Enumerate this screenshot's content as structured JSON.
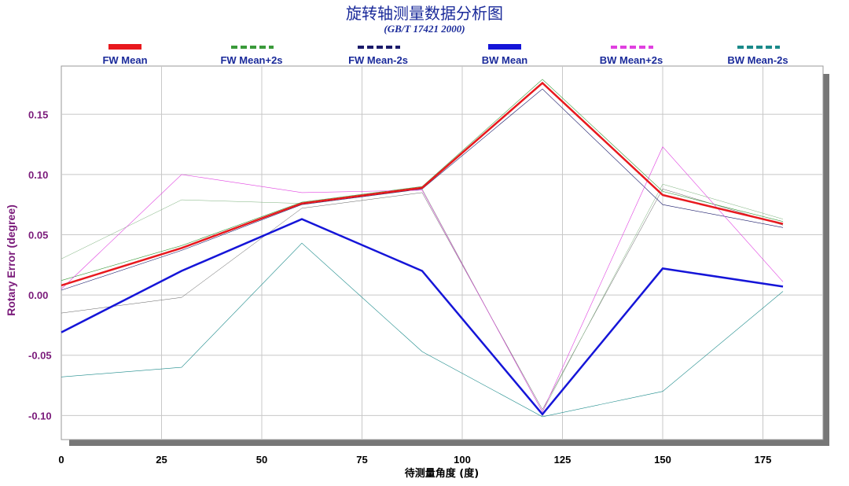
{
  "chart_data": {
    "type": "line",
    "title": "旋转轴测量数据分析图",
    "subtitle": "(GB/T 17421 2000)",
    "xlabel": "待测量角度 (度)",
    "ylabel": "Rotary Error (degree)",
    "xlim": [
      0,
      190
    ],
    "ylim": [
      -0.12,
      0.19
    ],
    "xticks": [
      0,
      25,
      50,
      75,
      100,
      125,
      150,
      175
    ],
    "yticks": [
      -0.1,
      -0.05,
      0.0,
      0.05,
      0.1,
      0.15
    ],
    "ytick_labels": [
      "-0.10",
      "-0.05",
      "0.00",
      "0.05",
      "0.10",
      "0.15"
    ],
    "grid": true,
    "legend_position": "top",
    "x": [
      0,
      30,
      60,
      90,
      120,
      150,
      180
    ],
    "series": [
      {
        "name": "FW Mean",
        "color": "#e8191e",
        "style": "solid",
        "width": 2.5,
        "legend_style": "thick",
        "values": [
          0.008,
          0.039,
          0.076,
          0.089,
          0.176,
          0.083,
          0.059
        ]
      },
      {
        "name": "FW Mean+2s",
        "color": "#3a9a3a",
        "style": "solid",
        "width": 0.6,
        "legend_style": "dashed",
        "values": [
          0.012,
          0.041,
          0.077,
          0.09,
          0.179,
          0.086,
          0.061
        ]
      },
      {
        "name": "FW Mean-2s",
        "color": "#1a1a6a",
        "style": "solid",
        "width": 0.6,
        "legend_style": "dashed",
        "values": [
          0.004,
          0.037,
          0.075,
          0.088,
          0.171,
          0.075,
          0.056
        ]
      },
      {
        "name": "BW Mean",
        "color": "#1515d8",
        "style": "solid",
        "width": 2.5,
        "legend_style": "thick",
        "values": [
          -0.031,
          0.02,
          0.063,
          0.02,
          -0.099,
          0.022,
          0.007
        ]
      },
      {
        "name": "BW Mean+2s",
        "color": "#e040e0",
        "style": "solid",
        "width": 0.6,
        "legend_style": "dashed",
        "values": [
          0.005,
          0.1,
          0.085,
          0.087,
          -0.097,
          0.123,
          0.011
        ]
      },
      {
        "name": "BW Mean-2s",
        "color": "#1a8a8a",
        "style": "solid",
        "width": 0.6,
        "legend_style": "dashed",
        "values": [
          -0.068,
          -0.06,
          0.043,
          -0.047,
          -0.101,
          -0.08,
          0.003
        ]
      },
      {
        "name": "",
        "color": "#606060",
        "style": "solid",
        "width": 0.5,
        "legend_style": "none",
        "values": [
          -0.015,
          -0.002,
          0.072,
          0.085,
          -0.095,
          0.088,
          0.058
        ]
      },
      {
        "name": "",
        "color": "#7ab07a",
        "style": "solid",
        "width": 0.5,
        "legend_style": "none",
        "values": [
          0.03,
          0.079,
          0.076,
          0.088,
          -0.097,
          0.092,
          0.063
        ]
      }
    ]
  }
}
